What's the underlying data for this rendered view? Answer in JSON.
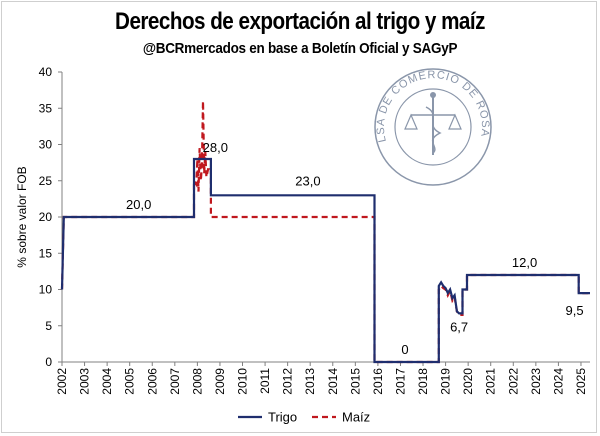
{
  "chart_data": {
    "type": "line",
    "title": "Derechos de exportación al trigo y maíz",
    "subtitle": "@BCRmercados en base a Boletín Oficial y SAGyP",
    "ylabel": "% sobre valor FOB",
    "xlabel": "",
    "ylim": [
      0,
      40
    ],
    "xlim": [
      2002,
      2025.4
    ],
    "yticks": [
      0,
      5,
      10,
      15,
      20,
      25,
      30,
      35,
      40
    ],
    "xticks": [
      "2002",
      "2003",
      "2004",
      "2005",
      "2006",
      "2007",
      "2008",
      "2009",
      "2010",
      "2011",
      "2012",
      "2013",
      "2014",
      "2015",
      "2016",
      "2017",
      "2018",
      "2019",
      "2020",
      "2021",
      "2022",
      "2023",
      "2024",
      "2025"
    ],
    "grid": false,
    "legend_position": "bottom-center",
    "series": [
      {
        "name": "Trigo",
        "color": "#1f2e6e",
        "style": "solid",
        "x": [
          2002,
          2002.08,
          2007.85,
          2007.85,
          2008.6,
          2008.6,
          2015.85,
          2015.85,
          2018.7,
          2018.7,
          2018.8,
          2018.9,
          2019.0,
          2019.1,
          2019.2,
          2019.3,
          2019.4,
          2019.5,
          2019.6,
          2019.75,
          2019.75,
          2019.95,
          2019.95,
          2024.9,
          2024.9,
          2025.4
        ],
        "y": [
          10,
          20,
          20,
          28,
          28,
          23,
          23,
          0,
          0,
          10.5,
          11,
          10.5,
          10.2,
          9.5,
          10,
          8.8,
          9.2,
          7,
          6.7,
          6.7,
          10,
          10,
          12,
          12,
          9.5,
          9.5
        ]
      },
      {
        "name": "Maíz",
        "color": "#c0181e",
        "style": "dashed",
        "x": [
          2002,
          2002.08,
          2007.85,
          2007.85,
          2007.95,
          2008.0,
          2008.05,
          2008.1,
          2008.15,
          2008.2,
          2008.25,
          2008.3,
          2008.35,
          2008.4,
          2008.5,
          2008.6,
          2008.6,
          2015.85,
          2015.85,
          2018.7,
          2018.7,
          2018.8,
          2018.9,
          2019.0,
          2019.1,
          2019.2,
          2019.3,
          2019.4,
          2019.5,
          2019.6,
          2019.75,
          2019.75,
          2019.95,
          2019.95,
          2024.9,
          2024.9,
          2025.4
        ],
        "y": [
          10,
          20,
          20,
          25,
          24.5,
          28,
          23.5,
          29.5,
          25,
          27,
          36,
          26,
          29,
          25.5,
          27,
          26.5,
          20,
          20,
          0,
          0,
          10,
          10.5,
          10.2,
          10,
          9.2,
          9.8,
          8.5,
          9,
          7,
          6.5,
          6.5,
          10,
          10,
          12,
          12,
          9.5,
          9.5
        ]
      }
    ],
    "annotations": [
      {
        "text": "20,0",
        "x": 2005.4,
        "y": 20
      },
      {
        "text": "28,0",
        "x": 2008.35,
        "y": 28
      },
      {
        "text": "23,0",
        "x": 2012.9,
        "y": 23
      },
      {
        "text": "0",
        "x": 2017.2,
        "y": 0
      },
      {
        "text": "6,7",
        "x": 2019.6,
        "y": 6.7
      },
      {
        "text": "12,0",
        "x": 2022.5,
        "y": 12
      },
      {
        "text": "9,5",
        "x": 2024.85,
        "y": 9.5
      }
    ]
  },
  "watermark": {
    "text_top": "BOLSA DE COMERCIO DE ROSARIO",
    "color": "#8a96aa"
  }
}
